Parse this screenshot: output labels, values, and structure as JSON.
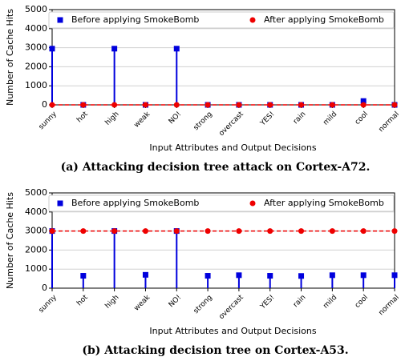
{
  "chart_data": [
    {
      "type": "stem",
      "caption": "(a) Attacking decision tree attack on Cortex-A72.",
      "x_label": "Input Attributes and Output Decisions",
      "y_label": "Number of Cache Hits",
      "categories": [
        "sunny",
        "hot",
        "high",
        "weak",
        "NO!",
        "strong",
        "overcast",
        "YES!",
        "rain",
        "mild",
        "cool",
        "normal"
      ],
      "series": [
        {
          "name": "Before applying SmokeBomb",
          "color": "#0000dd",
          "marker": "square",
          "line": "stem",
          "values": [
            2950,
            0,
            2950,
            0,
            2950,
            0,
            0,
            0,
            0,
            0,
            200,
            0
          ]
        },
        {
          "name": "After applying SmokeBomb",
          "color": "#ee0000",
          "marker": "circle",
          "line": "dashed",
          "values": [
            0,
            0,
            0,
            0,
            0,
            0,
            0,
            0,
            0,
            0,
            0,
            0
          ]
        }
      ],
      "ylim": [
        0,
        5000
      ],
      "yticks": [
        0,
        1000,
        2000,
        3000,
        4000,
        5000
      ],
      "grid": true,
      "legend": "top"
    },
    {
      "type": "stem",
      "caption": "(b) Attacking decision tree on Cortex-A53.",
      "x_label": "Input Attributes and Output Decisions",
      "y_label": "Number of Cache Hits",
      "categories": [
        "sunny",
        "hot",
        "high",
        "weak",
        "NO!",
        "strong",
        "overcast",
        "YES!",
        "rain",
        "mild",
        "cool",
        "normal"
      ],
      "series": [
        {
          "name": "Before applying SmokeBomb",
          "color": "#0000dd",
          "marker": "square",
          "line": "stem",
          "values": [
            3000,
            650,
            3000,
            700,
            3000,
            650,
            680,
            650,
            640,
            680,
            680,
            680
          ]
        },
        {
          "name": "After applying SmokeBomb",
          "color": "#ee0000",
          "marker": "circle",
          "line": "dashed",
          "values": [
            3000,
            3000,
            3000,
            3000,
            3000,
            3000,
            3000,
            3000,
            3000,
            3000,
            3000,
            3000
          ]
        }
      ],
      "ylim": [
        0,
        5000
      ],
      "yticks": [
        0,
        1000,
        2000,
        3000,
        4000,
        5000
      ],
      "grid": true,
      "legend": "top"
    }
  ]
}
